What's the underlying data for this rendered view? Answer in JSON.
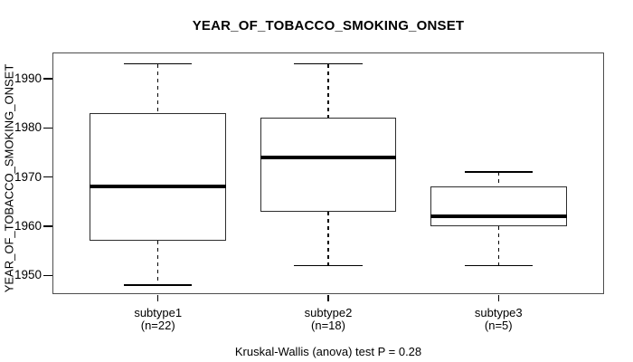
{
  "title": "YEAR_OF_TOBACCO_SMOKING_ONSET",
  "footer": "Kruskal-Wallis (anova) test P = 0.28",
  "chart_data": {
    "type": "boxplot",
    "title": "YEAR_OF_TOBACCO_SMOKING_ONSET",
    "ylabel": "YEAR_OF_TOBACCO_SMOKING_ONSET",
    "xlabel": "",
    "categories": [
      "subtype1",
      "subtype2",
      "subtype3"
    ],
    "category_sublabels": [
      "(n=22)",
      "(n=18)",
      "(n=5)"
    ],
    "series": [
      {
        "name": "subtype1",
        "n": 22,
        "min": 1948,
        "q1": 1957,
        "median": 1968,
        "q3": 1983,
        "max": 1993
      },
      {
        "name": "subtype2",
        "n": 18,
        "min": 1952,
        "q1": 1963,
        "median": 1974,
        "q3": 1982,
        "max": 1993
      },
      {
        "name": "subtype3",
        "n": 5,
        "min": 1952,
        "q1": 1960,
        "median": 1962,
        "q3": 1968,
        "max": 1971
      }
    ],
    "y_ticks": [
      1950,
      1960,
      1970,
      1980,
      1990
    ],
    "ylim": [
      1946.2,
      1995.3
    ],
    "xlim": [
      0.38,
      3.62
    ],
    "box_width": 0.8,
    "cap_width": 0.4,
    "grid": false,
    "legend": null,
    "annotation": "Kruskal-Wallis (anova) test P = 0.28",
    "colors": {
      "line": "#000000",
      "box_fill": "#ffffff",
      "frame": "#4d4d4d",
      "text": "#000000"
    }
  }
}
